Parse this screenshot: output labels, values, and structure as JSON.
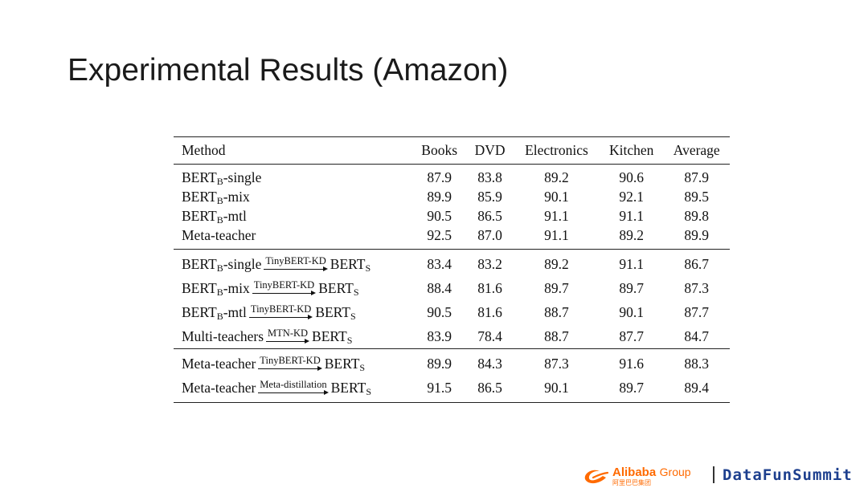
{
  "title": "Experimental Results (Amazon)",
  "table": {
    "headers": [
      "Method",
      "Books",
      "DVD",
      "Electronics",
      "Kitchen",
      "Average"
    ],
    "groups": [
      [
        {
          "method": {
            "base": "BERT",
            "sub": "B",
            "suffix": "-single"
          },
          "values": [
            "87.9",
            "83.8",
            "89.2",
            "90.6",
            "87.9"
          ]
        },
        {
          "method": {
            "base": "BERT",
            "sub": "B",
            "suffix": "-mix"
          },
          "values": [
            "89.9",
            "85.9",
            "90.1",
            "92.1",
            "89.5"
          ]
        },
        {
          "method": {
            "base": "BERT",
            "sub": "B",
            "suffix": "-mtl"
          },
          "values": [
            "90.5",
            "86.5",
            "91.1",
            "91.1",
            "89.8"
          ]
        },
        {
          "method": {
            "base": "Meta-teacher",
            "sub": "",
            "suffix": ""
          },
          "values": [
            "92.5",
            "87.0",
            "91.1",
            "89.2",
            "89.9"
          ]
        }
      ],
      [
        {
          "method": {
            "base": "BERT",
            "sub": "B",
            "suffix": "-single",
            "arrow": "TinyBERT-KD",
            "target": "BERT",
            "target_sub": "S"
          },
          "values": [
            "83.4",
            "83.2",
            "89.2",
            "91.1",
            "86.7"
          ]
        },
        {
          "method": {
            "base": "BERT",
            "sub": "B",
            "suffix": "-mix",
            "arrow": "TinyBERT-KD",
            "target": "BERT",
            "target_sub": "S"
          },
          "values": [
            "88.4",
            "81.6",
            "89.7",
            "89.7",
            "87.3"
          ]
        },
        {
          "method": {
            "base": "BERT",
            "sub": "B",
            "suffix": "-mtl",
            "arrow": "TinyBERT-KD",
            "target": "BERT",
            "target_sub": "S"
          },
          "values": [
            "90.5",
            "81.6",
            "88.7",
            "90.1",
            "87.7"
          ]
        },
        {
          "method": {
            "base": "Multi-teachers",
            "sub": "",
            "suffix": "",
            "arrow": "MTN-KD",
            "target": "BERT",
            "target_sub": "S"
          },
          "values": [
            "83.9",
            "78.4",
            "88.7",
            "87.7",
            "84.7"
          ]
        }
      ],
      [
        {
          "method": {
            "base": "Meta-teacher",
            "sub": "",
            "suffix": "",
            "arrow": "TinyBERT-KD",
            "target": "BERT",
            "target_sub": "S"
          },
          "values": [
            "89.9",
            "84.3",
            "87.3",
            "91.6",
            "88.3"
          ],
          "bold": [
            false,
            false,
            false,
            true,
            false
          ]
        },
        {
          "method": {
            "base": "Meta-teacher",
            "sub": "",
            "suffix": "",
            "arrow": "Meta-distillation",
            "target": "BERT",
            "target_sub": "S"
          },
          "values": [
            "91.5",
            "86.5",
            "90.1",
            "89.7",
            "89.4"
          ],
          "bold": [
            true,
            true,
            true,
            false,
            true
          ]
        }
      ]
    ]
  },
  "footer": {
    "alibaba_name": "Alibaba",
    "alibaba_group": "Group",
    "alibaba_cn": "阿里巴巴集团",
    "alibaba_mark_icon": "alibaba-logo-icon",
    "brand_orange": "#ff6a00",
    "datafun": "DataFunSummit",
    "datafun_color": "#1d3f8e"
  }
}
